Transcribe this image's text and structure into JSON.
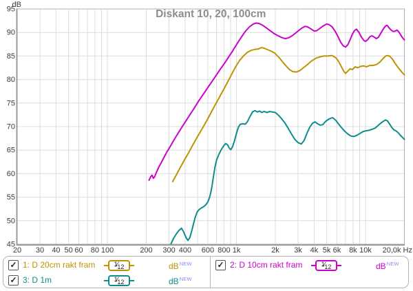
{
  "title": "Diskant 10, 20, 100cm",
  "axes": {
    "y_unit_label": "dB",
    "y_ticks": [
      95,
      90,
      85,
      80,
      75,
      70,
      65,
      60,
      55,
      50,
      45
    ],
    "x_ticks": [
      {
        "f": 20,
        "label": "20"
      },
      {
        "f": 30,
        "label": "30"
      },
      {
        "f": 40,
        "label": "40"
      },
      {
        "f": 50,
        "label": "50"
      },
      {
        "f": 60,
        "label": "60"
      },
      {
        "f": 80,
        "label": "80"
      },
      {
        "f": 100,
        "label": "100"
      },
      {
        "f": 200,
        "label": "200"
      },
      {
        "f": 300,
        "label": "300"
      },
      {
        "f": 400,
        "label": "400"
      },
      {
        "f": 600,
        "label": "600"
      },
      {
        "f": 800,
        "label": "800"
      },
      {
        "f": 1000,
        "label": "1k"
      },
      {
        "f": 2000,
        "label": "2k"
      },
      {
        "f": 3000,
        "label": "3k"
      },
      {
        "f": 4000,
        "label": "4k"
      },
      {
        "f": 5000,
        "label": "5k"
      },
      {
        "f": 6000,
        "label": "6k"
      },
      {
        "f": 8000,
        "label": "8k"
      },
      {
        "f": 10000,
        "label": "10k"
      },
      {
        "f": 20000,
        "label": "20,0k Hz"
      }
    ],
    "grid_freqs": [
      20,
      30,
      40,
      50,
      60,
      70,
      80,
      90,
      100,
      200,
      300,
      400,
      500,
      600,
      700,
      800,
      900,
      1000,
      2000,
      3000,
      4000,
      5000,
      6000,
      7000,
      8000,
      9000,
      10000,
      20000
    ],
    "grid_color": "#dcdcdc",
    "border_color": "#b0b0b0",
    "axis_color": "#9a9a9a",
    "tick_text_color": "#3a3a3a",
    "title_color": "#8c8c8c"
  },
  "chart_data": {
    "type": "line",
    "title": "Diskant 10, 20, 100cm",
    "xlabel": "Hz",
    "ylabel": "dB",
    "x_scale": "log",
    "xlim": [
      20,
      20000
    ],
    "ylim": [
      45,
      95
    ],
    "grid": true,
    "legend_position": "bottom",
    "series": [
      {
        "name": "1: D 20cm rakt fram",
        "color": "#bd9204",
        "points": [
          [
            320,
            58.3
          ],
          [
            340,
            59.6
          ],
          [
            365,
            61.2
          ],
          [
            395,
            62.9
          ],
          [
            425,
            64.4
          ],
          [
            455,
            65.9
          ],
          [
            490,
            67.5
          ],
          [
            525,
            68.9
          ],
          [
            560,
            70.2
          ],
          [
            600,
            71.7
          ],
          [
            645,
            73.3
          ],
          [
            690,
            74.8
          ],
          [
            740,
            76.3
          ],
          [
            795,
            77.9
          ],
          [
            855,
            79.5
          ],
          [
            920,
            81.2
          ],
          [
            990,
            82.8
          ],
          [
            1060,
            84.1
          ],
          [
            1140,
            85.1
          ],
          [
            1220,
            85.8
          ],
          [
            1300,
            86.2
          ],
          [
            1390,
            86.4
          ],
          [
            1480,
            86.5
          ],
          [
            1570,
            86.8
          ],
          [
            1660,
            86.6
          ],
          [
            1760,
            86.3
          ],
          [
            1870,
            86.0
          ],
          [
            1980,
            85.6
          ],
          [
            2120,
            84.8
          ],
          [
            2270,
            83.8
          ],
          [
            2420,
            82.9
          ],
          [
            2580,
            82.1
          ],
          [
            2730,
            81.7
          ],
          [
            2900,
            81.6
          ],
          [
            3100,
            81.9
          ],
          [
            3300,
            82.5
          ],
          [
            3550,
            83.2
          ],
          [
            3800,
            83.9
          ],
          [
            4100,
            84.5
          ],
          [
            4400,
            84.8
          ],
          [
            4750,
            85.0
          ],
          [
            5100,
            85.0
          ],
          [
            5500,
            85.1
          ],
          [
            5900,
            84.6
          ],
          [
            6200,
            83.8
          ],
          [
            6500,
            82.7
          ],
          [
            6800,
            81.7
          ],
          [
            7000,
            81.3
          ],
          [
            7300,
            81.8
          ],
          [
            7600,
            82.3
          ],
          [
            7900,
            82.1
          ],
          [
            8300,
            82.7
          ],
          [
            8700,
            82.5
          ],
          [
            9200,
            82.8
          ],
          [
            9700,
            82.9
          ],
          [
            10200,
            82.7
          ],
          [
            10800,
            83.0
          ],
          [
            11500,
            83.0
          ],
          [
            12200,
            83.2
          ],
          [
            12900,
            83.7
          ],
          [
            13600,
            84.4
          ],
          [
            14300,
            85.0
          ],
          [
            14900,
            85.1
          ],
          [
            15500,
            84.9
          ],
          [
            16200,
            84.3
          ],
          [
            16900,
            83.5
          ],
          [
            17600,
            82.8
          ],
          [
            18400,
            82.1
          ],
          [
            19200,
            81.5
          ],
          [
            20000,
            81.0
          ]
        ]
      },
      {
        "name": "3: D 1m",
        "color": "#0e8b8b",
        "points": [
          [
            311,
            45.1
          ],
          [
            325,
            46.2
          ],
          [
            340,
            47.1
          ],
          [
            357,
            47.9
          ],
          [
            375,
            48.4
          ],
          [
            390,
            47.6
          ],
          [
            405,
            46.5
          ],
          [
            420,
            45.8
          ],
          [
            435,
            46.4
          ],
          [
            450,
            47.8
          ],
          [
            465,
            49.4
          ],
          [
            480,
            50.8
          ],
          [
            497,
            51.9
          ],
          [
            515,
            52.4
          ],
          [
            535,
            52.7
          ],
          [
            558,
            53.0
          ],
          [
            580,
            53.4
          ],
          [
            600,
            54.0
          ],
          [
            618,
            54.9
          ],
          [
            635,
            56.2
          ],
          [
            650,
            57.8
          ],
          [
            665,
            59.6
          ],
          [
            680,
            61.3
          ],
          [
            700,
            62.8
          ],
          [
            725,
            63.9
          ],
          [
            755,
            64.9
          ],
          [
            790,
            65.8
          ],
          [
            825,
            66.4
          ],
          [
            855,
            66.1
          ],
          [
            880,
            65.4
          ],
          [
            905,
            65.1
          ],
          [
            935,
            65.8
          ],
          [
            965,
            67.0
          ],
          [
            1000,
            68.6
          ],
          [
            1035,
            69.9
          ],
          [
            1070,
            70.5
          ],
          [
            1120,
            70.6
          ],
          [
            1170,
            70.5
          ],
          [
            1220,
            71.1
          ],
          [
            1275,
            72.2
          ],
          [
            1330,
            73.1
          ],
          [
            1390,
            73.4
          ],
          [
            1450,
            73.1
          ],
          [
            1510,
            73.3
          ],
          [
            1570,
            73.0
          ],
          [
            1640,
            73.2
          ],
          [
            1720,
            73.0
          ],
          [
            1810,
            73.2
          ],
          [
            1900,
            73.1
          ],
          [
            2000,
            73.0
          ],
          [
            2120,
            72.4
          ],
          [
            2250,
            71.6
          ],
          [
            2380,
            70.7
          ],
          [
            2520,
            69.6
          ],
          [
            2670,
            68.4
          ],
          [
            2830,
            67.3
          ],
          [
            3000,
            66.6
          ],
          [
            3180,
            66.3
          ],
          [
            3350,
            67.1
          ],
          [
            3520,
            68.6
          ],
          [
            3700,
            69.9
          ],
          [
            3880,
            70.7
          ],
          [
            4050,
            71.0
          ],
          [
            4250,
            70.6
          ],
          [
            4450,
            70.3
          ],
          [
            4650,
            70.4
          ],
          [
            4900,
            71.1
          ],
          [
            5200,
            71.6
          ],
          [
            5550,
            71.9
          ],
          [
            5850,
            71.4
          ],
          [
            6200,
            70.5
          ],
          [
            6550,
            69.7
          ],
          [
            6900,
            69.0
          ],
          [
            7300,
            68.4
          ],
          [
            7700,
            68.0
          ],
          [
            8100,
            67.9
          ],
          [
            8500,
            68.1
          ],
          [
            9000,
            68.5
          ],
          [
            9500,
            68.9
          ],
          [
            10000,
            69.1
          ],
          [
            10600,
            69.2
          ],
          [
            11200,
            69.4
          ],
          [
            11900,
            69.7
          ],
          [
            12700,
            70.4
          ],
          [
            13500,
            71.0
          ],
          [
            14300,
            71.4
          ],
          [
            14800,
            71.2
          ],
          [
            15400,
            70.5
          ],
          [
            16000,
            69.8
          ],
          [
            16600,
            69.3
          ],
          [
            17200,
            69.1
          ],
          [
            17900,
            68.7
          ],
          [
            18700,
            68.1
          ],
          [
            19300,
            67.7
          ],
          [
            20000,
            67.3
          ]
        ]
      },
      {
        "name": "2: D 10cm rakt fram",
        "color": "#cb00cb",
        "points": [
          [
            210,
            58.6
          ],
          [
            216,
            59.3
          ],
          [
            222,
            59.7
          ],
          [
            227,
            59.0
          ],
          [
            233,
            59.4
          ],
          [
            240,
            60.3
          ],
          [
            250,
            61.4
          ],
          [
            262,
            62.4
          ],
          [
            275,
            63.5
          ],
          [
            290,
            64.7
          ],
          [
            310,
            66.0
          ],
          [
            330,
            67.3
          ],
          [
            355,
            68.7
          ],
          [
            380,
            70.0
          ],
          [
            410,
            71.4
          ],
          [
            440,
            72.7
          ],
          [
            470,
            73.9
          ],
          [
            500,
            75.1
          ],
          [
            535,
            76.3
          ],
          [
            570,
            77.4
          ],
          [
            610,
            78.6
          ],
          [
            650,
            79.7
          ],
          [
            700,
            81.0
          ],
          [
            750,
            82.2
          ],
          [
            810,
            83.5
          ],
          [
            870,
            84.8
          ],
          [
            940,
            86.2
          ],
          [
            1010,
            87.6
          ],
          [
            1090,
            89.0
          ],
          [
            1170,
            90.2
          ],
          [
            1260,
            91.2
          ],
          [
            1350,
            91.8
          ],
          [
            1420,
            92.0
          ],
          [
            1500,
            91.9
          ],
          [
            1600,
            91.5
          ],
          [
            1700,
            91.0
          ],
          [
            1800,
            90.5
          ],
          [
            1950,
            89.8
          ],
          [
            2100,
            89.3
          ],
          [
            2250,
            88.9
          ],
          [
            2400,
            88.7
          ],
          [
            2550,
            88.9
          ],
          [
            2700,
            89.3
          ],
          [
            2850,
            89.8
          ],
          [
            3000,
            90.3
          ],
          [
            3200,
            90.9
          ],
          [
            3400,
            91.3
          ],
          [
            3550,
            91.2
          ],
          [
            3750,
            90.8
          ],
          [
            4000,
            90.3
          ],
          [
            4200,
            90.4
          ],
          [
            4450,
            90.9
          ],
          [
            4700,
            91.4
          ],
          [
            5000,
            91.8
          ],
          [
            5200,
            91.7
          ],
          [
            5500,
            91.2
          ],
          [
            5800,
            90.3
          ],
          [
            6100,
            89.2
          ],
          [
            6400,
            88.0
          ],
          [
            6700,
            87.2
          ],
          [
            7000,
            86.9
          ],
          [
            7300,
            87.4
          ],
          [
            7600,
            88.5
          ],
          [
            7900,
            89.6
          ],
          [
            8200,
            90.4
          ],
          [
            8500,
            90.7
          ],
          [
            8900,
            90.0
          ],
          [
            9300,
            89.0
          ],
          [
            9700,
            88.3
          ],
          [
            10000,
            88.1
          ],
          [
            10400,
            88.5
          ],
          [
            10800,
            89.1
          ],
          [
            11200,
            89.3
          ],
          [
            11700,
            89.0
          ],
          [
            12100,
            88.7
          ],
          [
            12600,
            89.0
          ],
          [
            13100,
            89.8
          ],
          [
            13700,
            90.7
          ],
          [
            14300,
            91.4
          ],
          [
            14700,
            91.5
          ],
          [
            15200,
            91.0
          ],
          [
            15800,
            90.5
          ],
          [
            16400,
            90.2
          ],
          [
            17000,
            90.3
          ],
          [
            17500,
            90.5
          ],
          [
            18000,
            90.2
          ],
          [
            18700,
            89.5
          ],
          [
            19300,
            88.9
          ],
          [
            20000,
            88.4
          ]
        ]
      }
    ]
  },
  "legend": {
    "new_badge_color": "#8a8aff",
    "checkmark": "✓",
    "entries": [
      {
        "label": "1: D 20cm rakt fram",
        "checked": true,
        "smoothing_num": "1",
        "smoothing_den": "12",
        "unit": "dB",
        "unit_sup": "NEW",
        "color": "#bd9204"
      },
      {
        "label": "2: D 10cm rakt fram",
        "checked": true,
        "smoothing_num": "1",
        "smoothing_den": "12",
        "unit": "dB",
        "unit_sup": "NEW",
        "color": "#cb00cb"
      },
      {
        "label": "3: D 1m",
        "checked": true,
        "smoothing_num": "1",
        "smoothing_den": "12",
        "unit": "dB",
        "unit_sup": "NEW",
        "color": "#0e8b8b"
      }
    ]
  }
}
